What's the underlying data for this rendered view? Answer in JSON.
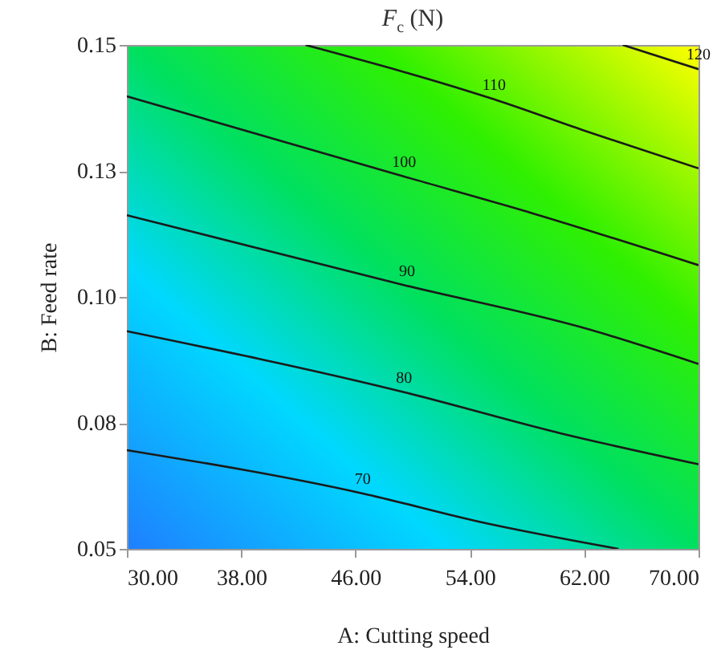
{
  "chart_data": {
    "type": "line",
    "title": "F$_{c}$ (N)",
    "xlabel": "A: Cutting speed",
    "ylabel": "B: Feed rate",
    "xlim": [
      30,
      70
    ],
    "xticks": [
      {
        "value": 30,
        "label": "30.00"
      },
      {
        "value": 38,
        "label": "38.00"
      },
      {
        "value": 46,
        "label": "46.00"
      },
      {
        "value": 54,
        "label": "54.00"
      },
      {
        "value": 62,
        "label": "62.00"
      },
      {
        "value": 70,
        "label": "70.00"
      }
    ],
    "ylim": [
      0.05,
      0.15
    ],
    "yticks": [
      {
        "value": 0.05,
        "label": "0.05"
      },
      {
        "value": 0.075,
        "label": "0.08"
      },
      {
        "value": 0.1,
        "label": "0.10"
      },
      {
        "value": 0.125,
        "label": "0.13"
      },
      {
        "value": 0.15,
        "label": "0.15"
      }
    ],
    "grid": false,
    "legend": false,
    "marker": "none",
    "line_style": "solid",
    "series": [
      {
        "name": "70",
        "color": "#1a1a1a",
        "x": [
          30,
          46.5,
          54.8,
          64.4
        ],
        "values": [
          0.0696,
          0.061,
          0.0553,
          0.05
        ]
      },
      {
        "name": "80",
        "color": "#1a1a1a",
        "x": [
          30,
          49.4,
          60.4,
          70
        ],
        "values": [
          0.0932,
          0.0811,
          0.0729,
          0.0668
        ]
      },
      {
        "name": "90",
        "color": "#1a1a1a",
        "x": [
          30,
          49.6,
          62.4,
          70
        ],
        "values": [
          0.1162,
          0.1022,
          0.0935,
          0.0867
        ]
      },
      {
        "name": "100",
        "color": "#1a1a1a",
        "x": [
          30,
          49.4,
          58.5,
          70
        ],
        "values": [
          0.1398,
          0.1239,
          0.1165,
          0.1063
        ]
      },
      {
        "name": "110",
        "color": "#1a1a1a",
        "x": [
          42.5,
          55.7,
          62,
          70
        ],
        "values": [
          0.15,
          0.1392,
          0.133,
          0.1255
        ]
      },
      {
        "name": "120",
        "color": "#1a1a1a",
        "x": [
          64.7,
          70
        ],
        "values": [
          0.15,
          0.1452
        ]
      }
    ]
  }
}
